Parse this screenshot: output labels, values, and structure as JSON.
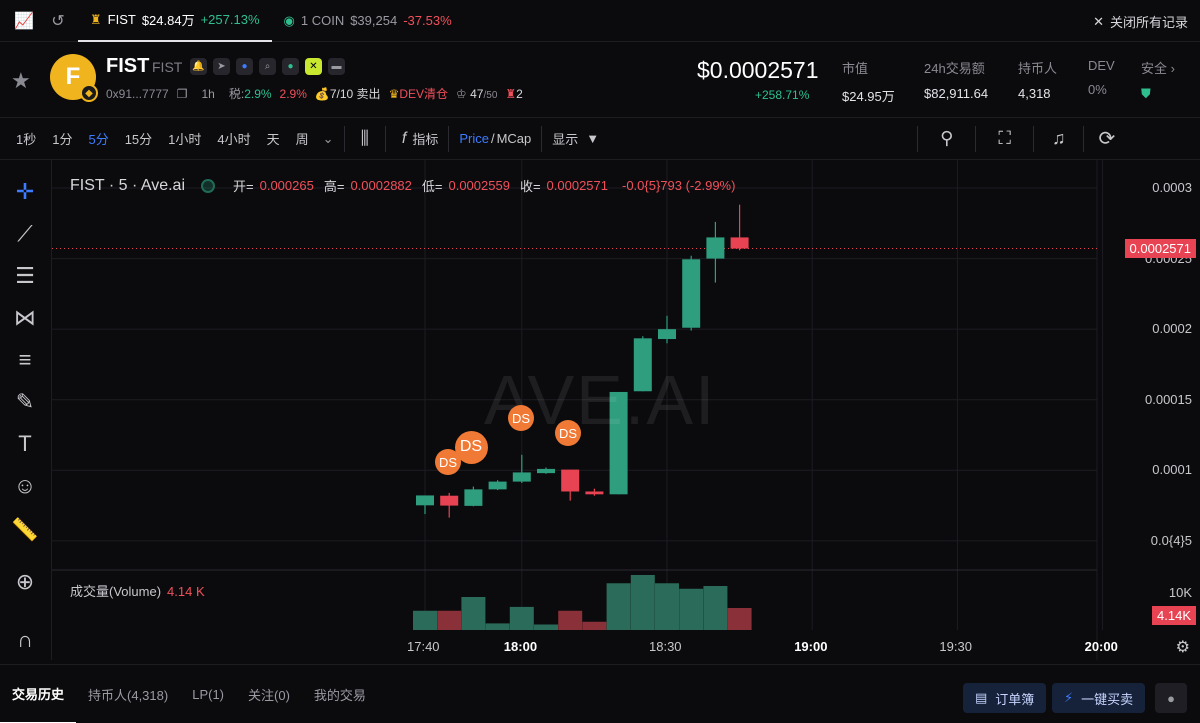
{
  "history": {
    "tabs": [
      {
        "symbol": "FIST",
        "value": "$24.84万",
        "change": "+257.13%"
      },
      {
        "symbol": "1 COIN",
        "value": "$39,254",
        "change": "-37.53%"
      }
    ],
    "close_all": "关闭所有记录"
  },
  "token": {
    "name": "FIST",
    "symbol": "FIST",
    "logo_letter": "F",
    "address": "0x91...7777",
    "age": "1h",
    "tax_label": "税:",
    "tax_buy": "2.9%",
    "tax_sell": "2.9%",
    "sell_info": "7/10 卖出",
    "dev_info": "DEV清仓",
    "holders_ratio": "47",
    "holders_ratio_total": "/50",
    "red_count": "2",
    "price": "$0.0002571",
    "price_change": "+258.71%"
  },
  "stats": [
    {
      "label": "市值",
      "value": "$24.95万"
    },
    {
      "label": "24h交易额",
      "value": "$82,911.64"
    },
    {
      "label": "持币人",
      "value": "4,318"
    },
    {
      "label": "DEV",
      "value": "0%"
    },
    {
      "label": "安全",
      "value": ""
    }
  ],
  "toolbar": {
    "timeframes": [
      "1秒",
      "1分",
      "5分",
      "15分",
      "1小时",
      "4小时",
      "天",
      "周"
    ],
    "active_timeframe": "5分",
    "indicators_label": "指标",
    "price_label": "Price",
    "mcap_label": "MCap",
    "display_label": "显示"
  },
  "chart_data": {
    "type": "candlestick",
    "symbol_label": "FIST · 5 · Ave.ai",
    "ohlc": {
      "open_label": "开=",
      "open": "0.000265",
      "high_label": "高=",
      "high": "0.0002882",
      "low_label": "低=",
      "low": "0.0002559",
      "close_label": "收=",
      "close": "0.0002571",
      "change": "-0.0{5}793 (-2.99%)"
    },
    "y_ticks": [
      "0.0003",
      "0.00025",
      "0.0002",
      "0.00015",
      "0.0001",
      "0.0{4}5"
    ],
    "y_range": [
      4e-05,
      0.0003
    ],
    "current_price": "0.0002571",
    "x_ticks": [
      "17:40",
      "18:00",
      "18:30",
      "19:00",
      "19:30",
      "20:00"
    ],
    "candles": [
      {
        "time": "17:40",
        "o": 7.52e-05,
        "h": 8.05e-05,
        "l": 6.9e-05,
        "c": 8.22e-05
      },
      {
        "time": "17:45",
        "o": 8.2e-05,
        "h": 8.4e-05,
        "l": 6.65e-05,
        "c": 7.5e-05
      },
      {
        "time": "17:50",
        "o": 7.48e-05,
        "h": 8.85e-05,
        "l": 7.45e-05,
        "c": 8.65e-05
      },
      {
        "time": "17:55",
        "o": 8.65e-05,
        "h": 9.3e-05,
        "l": 8.6e-05,
        "c": 9.2e-05
      },
      {
        "time": "18:00",
        "o": 9.2e-05,
        "h": 0.000111,
        "l": 9.1e-05,
        "c": 9.85e-05
      },
      {
        "time": "18:05",
        "o": 9.8e-05,
        "h": 0.000102,
        "l": 9.75e-05,
        "c": 0.000101
      },
      {
        "time": "18:10",
        "o": 0.0001005,
        "h": 0.0001005,
        "l": 7.85e-05,
        "c": 8.5e-05
      },
      {
        "time": "18:15",
        "o": 8.5e-05,
        "h": 8.7e-05,
        "l": 8.2e-05,
        "c": 8.3e-05
      },
      {
        "time": "18:20",
        "o": 8.3e-05,
        "h": 0.0001555,
        "l": 8.3e-05,
        "c": 0.0001555
      },
      {
        "time": "18:25",
        "o": 0.000156,
        "h": 0.000195,
        "l": 0.000156,
        "c": 0.0001935
      },
      {
        "time": "18:30",
        "o": 0.000193,
        "h": 0.0002095,
        "l": 0.00019,
        "c": 0.0002
      },
      {
        "time": "18:35",
        "o": 0.000201,
        "h": 0.000252,
        "l": 0.000199,
        "c": 0.0002495
      },
      {
        "time": "18:40",
        "o": 0.00025,
        "h": 0.000276,
        "l": 0.000233,
        "c": 0.000265
      },
      {
        "time": "18:45",
        "o": 0.000265,
        "h": 0.0002882,
        "l": 0.0002559,
        "c": 0.0002571
      }
    ],
    "volume": {
      "label": "成交量(Volume)",
      "current": "4.14 K",
      "tick": "10K",
      "tag": "4.14K",
      "bars": [
        0.35,
        0.35,
        0.6,
        0.12,
        0.42,
        0.1,
        0.35,
        0.15,
        0.85,
        1.0,
        0.85,
        0.75,
        0.8,
        0.4
      ]
    },
    "markers": [
      {
        "label": "DS",
        "size": "small"
      },
      {
        "label": "DS",
        "size": "big"
      },
      {
        "label": "DS",
        "size": "small"
      },
      {
        "label": "DS",
        "size": "small"
      }
    ],
    "watermark": "AVE.AI",
    "colors": {
      "up": "#2e9e7e",
      "down": "#e84352"
    }
  },
  "bottom": {
    "tabs": [
      "交易历史",
      "持币人(4,318)",
      "LP(1)",
      "关注(0)",
      "我的交易"
    ],
    "order_book": "订单簿",
    "quick_buy": "一键买卖"
  }
}
